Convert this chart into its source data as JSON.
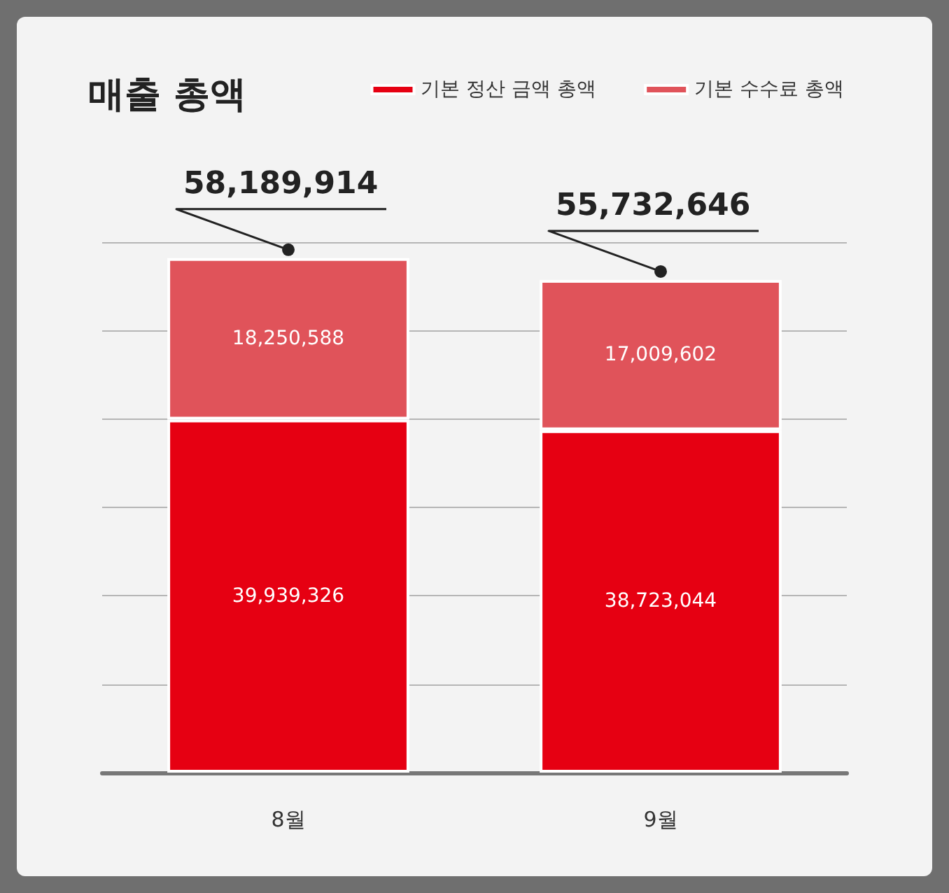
{
  "chart_data": {
    "type": "bar",
    "title": "매출 총액",
    "categories": [
      "8월",
      "9월"
    ],
    "stacked": true,
    "series": [
      {
        "name": "기본 정산 금액 총액",
        "color": "#e60012",
        "values": [
          39939326,
          38723044
        ],
        "value_labels": [
          "39,939,326",
          "38,723,044"
        ]
      },
      {
        "name": "기본 수수료 총액",
        "color": "#e0535a",
        "values": [
          18250588,
          17009602
        ],
        "value_labels": [
          "18,250,588",
          "17,009,602"
        ]
      }
    ],
    "totals": [
      "58,189,914",
      "55,732,646"
    ],
    "legend": "top right",
    "grid": "y",
    "tick_labels": "x"
  }
}
